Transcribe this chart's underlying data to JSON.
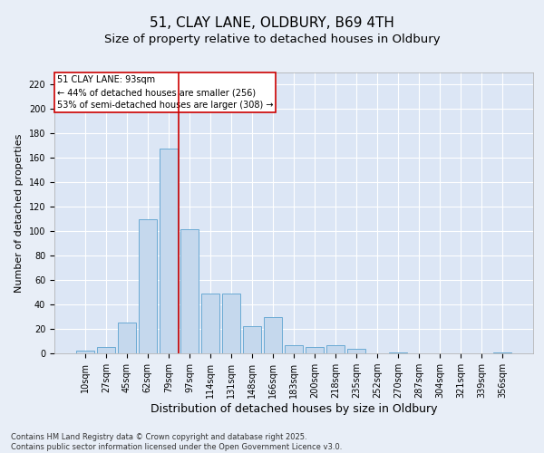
{
  "title": "51, CLAY LANE, OLDBURY, B69 4TH",
  "subtitle": "Size of property relative to detached houses in Oldbury",
  "xlabel": "Distribution of detached houses by size in Oldbury",
  "ylabel": "Number of detached properties",
  "categories": [
    "10sqm",
    "27sqm",
    "45sqm",
    "62sqm",
    "79sqm",
    "97sqm",
    "114sqm",
    "131sqm",
    "148sqm",
    "166sqm",
    "183sqm",
    "200sqm",
    "218sqm",
    "235sqm",
    "252sqm",
    "270sqm",
    "287sqm",
    "304sqm",
    "321sqm",
    "339sqm",
    "356sqm"
  ],
  "values": [
    2,
    5,
    25,
    110,
    168,
    102,
    49,
    49,
    22,
    30,
    7,
    5,
    7,
    4,
    0,
    1,
    0,
    0,
    0,
    0,
    1
  ],
  "bar_color": "#c5d8ed",
  "bar_edge_color": "#6aaad4",
  "vline_x": 4.5,
  "vline_color": "#cc0000",
  "annotation_box_text": "51 CLAY LANE: 93sqm\n← 44% of detached houses are smaller (256)\n53% of semi-detached houses are larger (308) →",
  "box_edge_color": "#cc0000",
  "ylim": [
    0,
    230
  ],
  "yticks": [
    0,
    20,
    40,
    60,
    80,
    100,
    120,
    140,
    160,
    180,
    200,
    220
  ],
  "bg_color": "#e8eef7",
  "plot_bg_color": "#dce6f5",
  "footer": "Contains HM Land Registry data © Crown copyright and database right 2025.\nContains public sector information licensed under the Open Government Licence v3.0.",
  "title_fontsize": 11,
  "subtitle_fontsize": 9.5,
  "xlabel_fontsize": 9,
  "ylabel_fontsize": 8,
  "tick_fontsize": 7,
  "annotation_fontsize": 7,
  "footer_fontsize": 6
}
